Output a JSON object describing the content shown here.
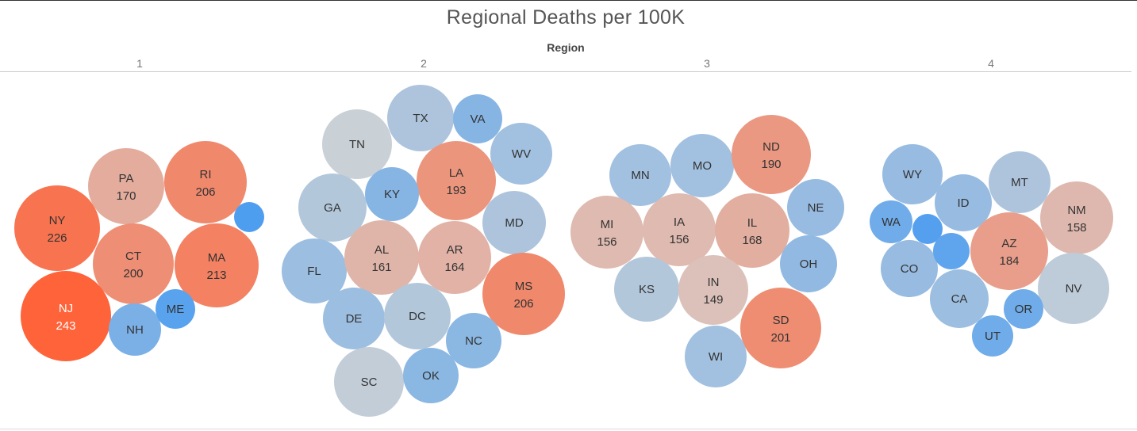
{
  "title": "Regional Deaths per 100K",
  "region_header": "Region",
  "chart_data": {
    "type": "packed-bubble",
    "title": "Regional Deaths per 100K",
    "size_and_color_measure": "Deaths per 100K (diverging scale: low = blue, mid = gray, high = orange-red)",
    "colors": {
      "low": "#4e9ef0",
      "mid": "#d4d4d4",
      "high": "#ff6136"
    },
    "regions": [
      {
        "name": "1",
        "states": [
          {
            "state": "NY",
            "value": 226,
            "label": "226"
          },
          {
            "state": "PA",
            "value": 170,
            "label": "170"
          },
          {
            "state": "RI",
            "value": 206,
            "label": "206"
          },
          {
            "state": "CT",
            "value": 200,
            "label": "200"
          },
          {
            "state": "MA",
            "value": 213,
            "label": "213"
          },
          {
            "state": "NJ",
            "value": 243,
            "label": "243"
          },
          {
            "state": "NH",
            "value": 50,
            "label": ""
          },
          {
            "state": "ME",
            "value": 20,
            "label": ""
          },
          {
            "state": "",
            "value": 10,
            "label": ""
          }
        ]
      },
      {
        "name": "2",
        "states": [
          {
            "state": "TX",
            "value": 95,
            "label": ""
          },
          {
            "state": "VA",
            "value": 60,
            "label": ""
          },
          {
            "state": "TN",
            "value": 120,
            "label": ""
          },
          {
            "state": "WV",
            "value": 85,
            "label": ""
          },
          {
            "state": "LA",
            "value": 193,
            "label": "193"
          },
          {
            "state": "GA",
            "value": 100,
            "label": ""
          },
          {
            "state": "KY",
            "value": 60,
            "label": ""
          },
          {
            "state": "MD",
            "value": 95,
            "label": ""
          },
          {
            "state": "FL",
            "value": 80,
            "label": ""
          },
          {
            "state": "AL",
            "value": 161,
            "label": "161"
          },
          {
            "state": "AR",
            "value": 164,
            "label": "164"
          },
          {
            "state": "MS",
            "value": 206,
            "label": "206"
          },
          {
            "state": "DE",
            "value": 80,
            "label": ""
          },
          {
            "state": "DC",
            "value": 100,
            "label": ""
          },
          {
            "state": "NC",
            "value": 65,
            "label": ""
          },
          {
            "state": "SC",
            "value": 115,
            "label": ""
          },
          {
            "state": "OK",
            "value": 65,
            "label": ""
          }
        ]
      },
      {
        "name": "3",
        "states": [
          {
            "state": "MN",
            "value": 85,
            "label": ""
          },
          {
            "state": "MO",
            "value": 85,
            "label": ""
          },
          {
            "state": "ND",
            "value": 190,
            "label": "190"
          },
          {
            "state": "NE",
            "value": 75,
            "label": ""
          },
          {
            "state": "MI",
            "value": 156,
            "label": "156"
          },
          {
            "state": "IA",
            "value": 156,
            "label": "156"
          },
          {
            "state": "IL",
            "value": 168,
            "label": "168"
          },
          {
            "state": "OH",
            "value": 70,
            "label": ""
          },
          {
            "state": "KS",
            "value": 100,
            "label": ""
          },
          {
            "state": "IN",
            "value": 149,
            "label": "149"
          },
          {
            "state": "SD",
            "value": 201,
            "label": "201"
          },
          {
            "state": "WI",
            "value": 85,
            "label": ""
          }
        ]
      },
      {
        "name": "4",
        "states": [
          {
            "state": "WY",
            "value": 75,
            "label": ""
          },
          {
            "state": "MT",
            "value": 95,
            "label": ""
          },
          {
            "state": "ID",
            "value": 75,
            "label": ""
          },
          {
            "state": "NM",
            "value": 158,
            "label": "158"
          },
          {
            "state": "WA",
            "value": 40,
            "label": ""
          },
          {
            "state": "",
            "value": 15,
            "label": ""
          },
          {
            "state": "AZ",
            "value": 184,
            "label": "184"
          },
          {
            "state": "CO",
            "value": 75,
            "label": ""
          },
          {
            "state": "",
            "value": 25,
            "label": ""
          },
          {
            "state": "NV",
            "value": 110,
            "label": ""
          },
          {
            "state": "CA",
            "value": 80,
            "label": ""
          },
          {
            "state": "OR",
            "value": 40,
            "label": ""
          },
          {
            "state": "UT",
            "value": 40,
            "label": ""
          }
        ]
      }
    ]
  }
}
